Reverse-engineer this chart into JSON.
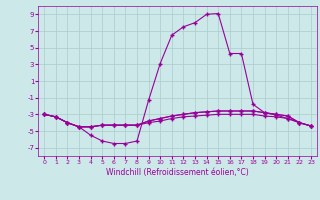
{
  "background_color": "#cce8e8",
  "grid_color": "#aacccc",
  "line_color": "#990099",
  "xlim": [
    -0.5,
    23.5
  ],
  "ylim": [
    -8,
    10
  ],
  "yticks": [
    -7,
    -5,
    -3,
    -1,
    1,
    3,
    5,
    7,
    9
  ],
  "xticks": [
    0,
    1,
    2,
    3,
    4,
    5,
    6,
    7,
    8,
    9,
    10,
    11,
    12,
    13,
    14,
    15,
    16,
    17,
    18,
    19,
    20,
    21,
    22,
    23
  ],
  "xlabel": "Windchill (Refroidissement éolien,°C)",
  "series0": [
    -3.0,
    -3.3,
    -4.0,
    -4.5,
    -5.5,
    -6.2,
    -6.5,
    -6.5,
    -6.2,
    -1.3,
    3.1,
    6.5,
    7.5,
    8.0,
    9.0,
    9.1,
    4.3,
    4.3,
    -1.8,
    -2.8,
    -3.1,
    -3.5,
    -4.0,
    -4.4
  ],
  "series1": [
    -3.0,
    -3.3,
    -4.0,
    -4.5,
    -4.5,
    -4.3,
    -4.3,
    -4.3,
    -4.3,
    -3.8,
    -3.5,
    -3.2,
    -3.0,
    -2.8,
    -2.7,
    -2.6,
    -2.6,
    -2.6,
    -2.6,
    -2.8,
    -3.0,
    -3.2,
    -4.0,
    -4.4
  ],
  "series2": [
    -3.0,
    -3.3,
    -4.0,
    -4.5,
    -4.5,
    -4.3,
    -4.3,
    -4.3,
    -4.3,
    -3.8,
    -3.5,
    -3.2,
    -3.0,
    -2.8,
    -2.7,
    -2.6,
    -2.6,
    -2.6,
    -2.6,
    -2.8,
    -3.0,
    -3.2,
    -4.0,
    -4.4
  ],
  "series3": [
    -3.0,
    -3.3,
    -4.0,
    -4.5,
    -4.5,
    -4.3,
    -4.3,
    -4.3,
    -4.3,
    -4.0,
    -3.8,
    -3.5,
    -3.3,
    -3.2,
    -3.1,
    -3.0,
    -3.0,
    -3.0,
    -3.0,
    -3.2,
    -3.3,
    -3.5,
    -4.0,
    -4.4
  ],
  "marker": "+",
  "markersize": 3,
  "linewidth": 0.8
}
